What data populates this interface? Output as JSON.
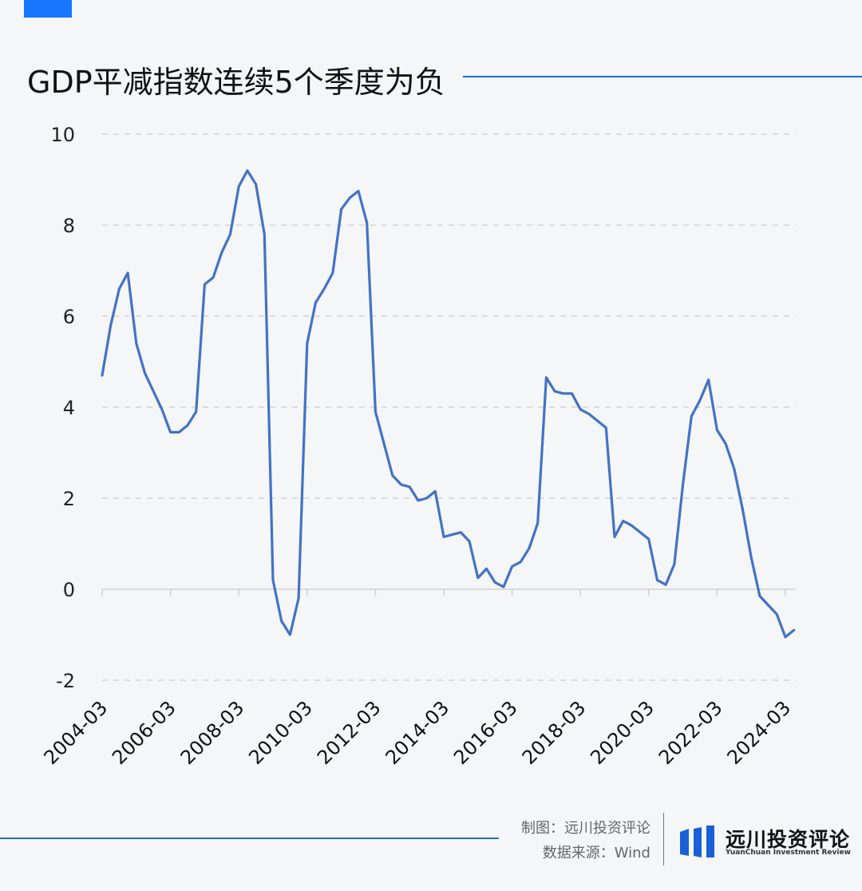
{
  "header": {
    "title": "GDP平减指数连续5个季度为负"
  },
  "footer": {
    "credit_maker": "制图：远川投资评论",
    "credit_source": "数据来源：Wind",
    "logo_name": "远川投资评论",
    "logo_subtitle": "YuanChuan Investment Review"
  },
  "colors": {
    "accent": "#1677ff",
    "line": "#4472c4",
    "rule": "#1a6fe0"
  },
  "chart_data": {
    "type": "line",
    "title": "GDP平减指数连续5个季度为负",
    "xlabel": "",
    "ylabel": "",
    "ylim": [
      -2,
      10
    ],
    "y_ticks": [
      10,
      8,
      6,
      4,
      2,
      0,
      -2
    ],
    "x_tick_labels": [
      "2004-03",
      "2006-03",
      "2008-03",
      "2010-03",
      "2012-03",
      "2014-03",
      "2016-03",
      "2018-03",
      "2020-03",
      "2022-03",
      "2024-03"
    ],
    "grid": true,
    "x": [
      "2004-03",
      "2004-06",
      "2004-09",
      "2004-12",
      "2005-03",
      "2005-06",
      "2005-09",
      "2005-12",
      "2006-03",
      "2006-06",
      "2006-09",
      "2006-12",
      "2007-03",
      "2007-06",
      "2007-09",
      "2007-12",
      "2008-03",
      "2008-06",
      "2008-09",
      "2008-12",
      "2009-03",
      "2009-06",
      "2009-09",
      "2009-12",
      "2010-03",
      "2010-06",
      "2010-09",
      "2010-12",
      "2011-03",
      "2011-06",
      "2011-09",
      "2011-12",
      "2012-03",
      "2012-06",
      "2012-09",
      "2012-12",
      "2013-03",
      "2013-06",
      "2013-09",
      "2013-12",
      "2014-03",
      "2014-06",
      "2014-09",
      "2014-12",
      "2015-03",
      "2015-06",
      "2015-09",
      "2015-12",
      "2016-03",
      "2016-06",
      "2016-09",
      "2016-12",
      "2017-03",
      "2017-06",
      "2017-09",
      "2017-12",
      "2018-03",
      "2018-06",
      "2018-09",
      "2018-12",
      "2019-03",
      "2019-06",
      "2019-09",
      "2019-12",
      "2020-03",
      "2020-06",
      "2020-09",
      "2020-12",
      "2021-03",
      "2021-06",
      "2021-09",
      "2021-12",
      "2022-03",
      "2022-06",
      "2022-09",
      "2022-12",
      "2023-03",
      "2023-06",
      "2023-09",
      "2023-12",
      "2024-03",
      "2024-06"
    ],
    "series": [
      {
        "values": [
          4.7,
          5.8,
          6.6,
          6.95,
          5.4,
          4.75,
          4.35,
          3.95,
          3.45,
          3.45,
          3.6,
          3.9,
          6.7,
          6.85,
          7.4,
          7.8,
          8.85,
          9.2,
          8.9,
          7.8,
          0.2,
          -0.7,
          -1.0,
          -0.2,
          5.4,
          6.3,
          6.6,
          6.95,
          8.35,
          8.6,
          8.75,
          8.05,
          3.9,
          3.2,
          2.5,
          2.3,
          2.25,
          1.95,
          2.0,
          2.15,
          1.15,
          1.2,
          1.25,
          1.05,
          0.25,
          0.45,
          0.15,
          0.05,
          0.5,
          0.6,
          0.9,
          1.45,
          4.65,
          4.35,
          4.3,
          4.3,
          3.95,
          3.85,
          3.7,
          3.55,
          1.15,
          1.5,
          1.4,
          1.25,
          1.1,
          0.2,
          0.1,
          0.55,
          2.3,
          3.8,
          4.15,
          4.6,
          3.5,
          3.2,
          2.65,
          1.75,
          0.7,
          -0.15,
          -0.35,
          -0.55,
          -1.05,
          -0.9
        ]
      }
    ]
  }
}
